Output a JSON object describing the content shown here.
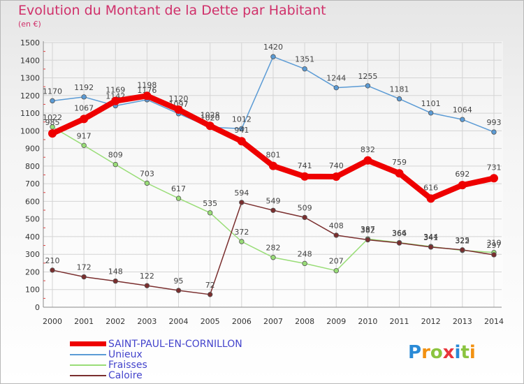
{
  "chart_data": {
    "type": "line",
    "title": "Evolution du Montant de la Dette par Habitant",
    "subtitle": "(en €)",
    "x": [
      "2000",
      "2001",
      "2002",
      "2003",
      "2004",
      "2005",
      "2006",
      "2007",
      "2008",
      "2009",
      "2010",
      "2011",
      "2012",
      "2013",
      "2014"
    ],
    "ylim": [
      0,
      1500
    ],
    "yticks": [
      0,
      100,
      200,
      300,
      400,
      500,
      600,
      700,
      800,
      900,
      1000,
      1100,
      1200,
      1300,
      1400,
      1500
    ],
    "grid": true,
    "series": [
      {
        "name": "Unieux",
        "color": "#5b9bd5",
        "values": [
          1170,
          1192,
          1142,
          1176,
          1097,
          1020,
          1012,
          1420,
          1351,
          1244,
          1255,
          1181,
          1101,
          1064,
          993
        ]
      },
      {
        "name": "Fraisses",
        "color": "#99dd77",
        "values": [
          1022,
          917,
          809,
          703,
          617,
          535,
          372,
          282,
          248,
          207,
          387,
          366,
          344,
          322,
          310
        ]
      },
      {
        "name": "Caloire",
        "color": "#7a2e2e",
        "values": [
          210,
          172,
          148,
          122,
          95,
          72,
          594,
          549,
          509,
          408,
          382,
          364,
          341,
          325,
          297
        ]
      },
      {
        "name": "SAINT-PAUL-EN-CORNILLON",
        "color": "#ee0000",
        "values": [
          985,
          1067,
          1169,
          1198,
          1120,
          1028,
          941,
          801,
          741,
          740,
          832,
          759,
          616,
          692,
          731
        ]
      }
    ],
    "legend": [
      "SAINT-PAUL-EN-CORNILLON",
      "Unieux",
      "Fraisses",
      "Caloire"
    ]
  },
  "logo": {
    "text": "Proxiti",
    "letters": [
      "P",
      "r",
      "o",
      "x",
      "i",
      "t",
      "i"
    ],
    "colors": [
      "#2a8ad6",
      "#f29111",
      "#8bc43f",
      "#e8343b",
      "#2a8ad6",
      "#8bc43f",
      "#f29111"
    ]
  }
}
